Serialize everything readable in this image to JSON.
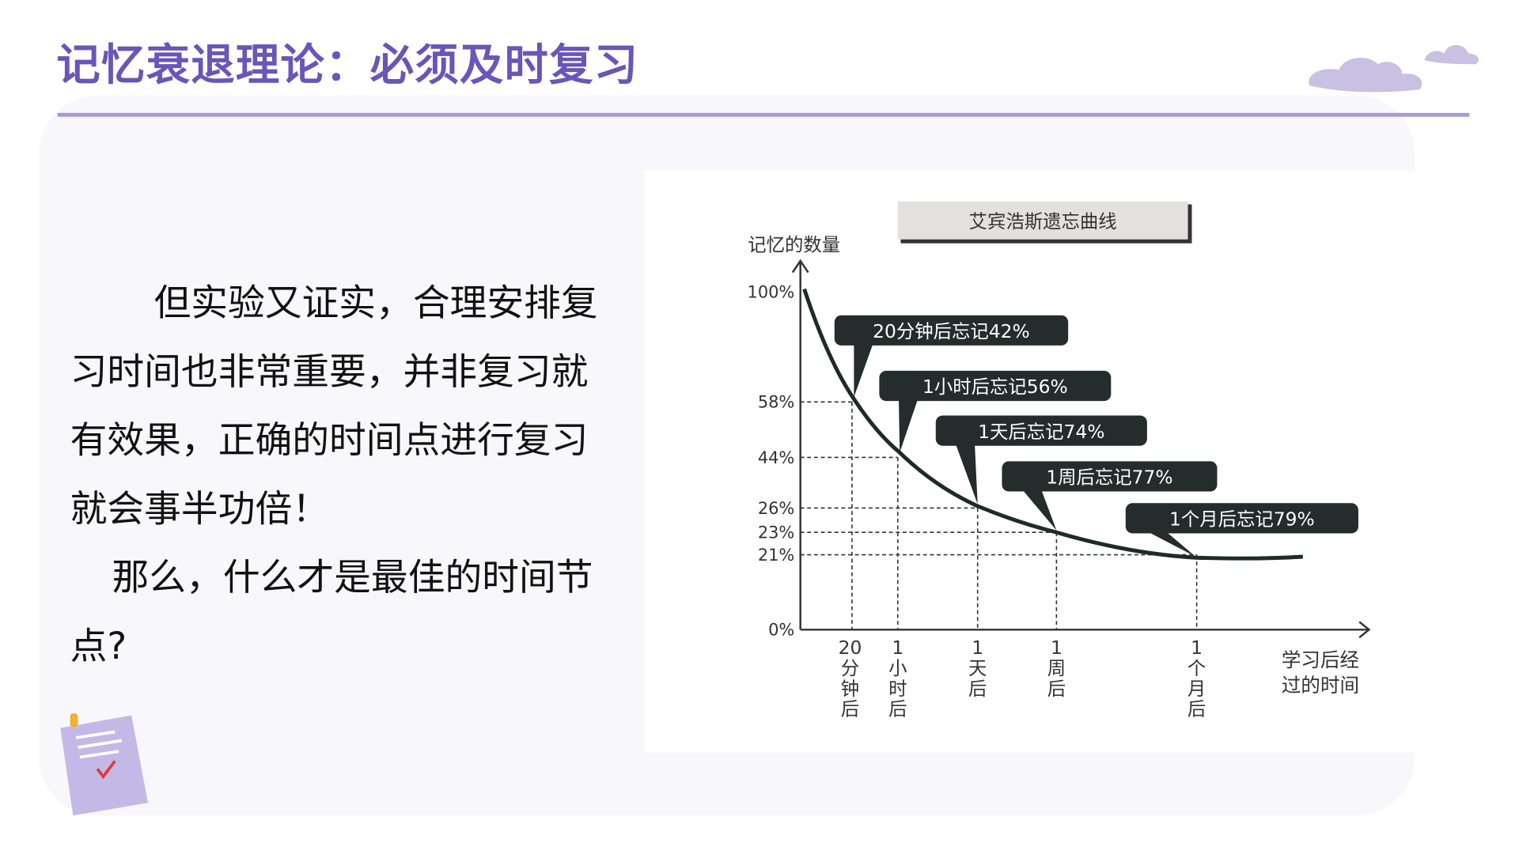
{
  "slide": {
    "title": "记忆衰退理论：必须及时复习",
    "paragraphs": [
      "但实验又证实，合理安排复习时间也非常重要，并非复习就有效果，正确的时间点进行复习就会事半功倍！",
      "那么，什么才是最佳的时间节点?"
    ],
    "accent_color": "#6a55b8"
  },
  "chart_data": {
    "type": "line",
    "title": "艾宾浩斯遗忘曲线",
    "ylabel": "记忆的数量",
    "xlabel": "学习后经过的时间",
    "yticks": [
      "100%",
      "58%",
      "44%",
      "26%",
      "23%",
      "21%",
      "0%"
    ],
    "categories": [
      "20分钟后",
      "1小时后",
      "1天后",
      "1周后",
      "1个月后"
    ],
    "xtick_labels": [
      [
        "20",
        "分",
        "钟",
        "后"
      ],
      [
        "1",
        "小",
        "时",
        "后"
      ],
      [
        "1",
        "天",
        "后"
      ],
      [
        "1",
        "周",
        "后"
      ],
      [
        "1",
        "个",
        "月",
        "后"
      ]
    ],
    "values": [
      58,
      44,
      26,
      23,
      21
    ],
    "start_value": 100,
    "annotations": [
      "20分钟后忘记42%",
      "1小时后忘记56%",
      "1天后忘记74%",
      "1周后忘记77%",
      "1个月后忘记79%"
    ],
    "ylim": [
      0,
      100
    ],
    "grid": false
  }
}
